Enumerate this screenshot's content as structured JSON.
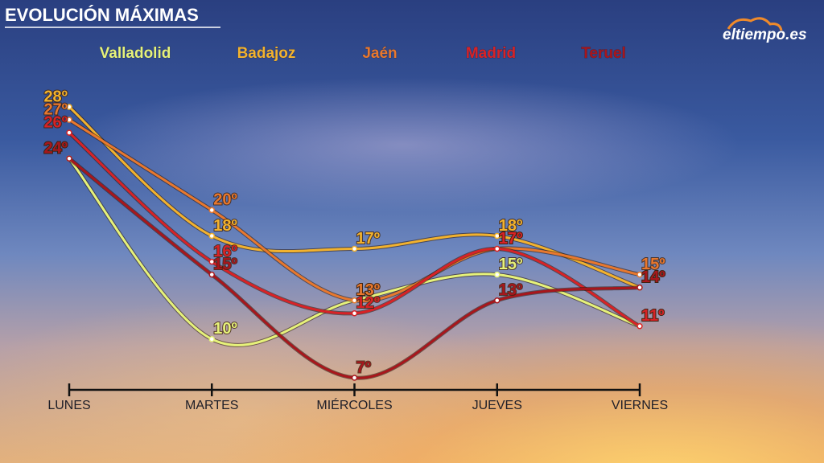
{
  "chart_data": {
    "type": "line",
    "title": "EVOLUCIÓN MÁXIMAS",
    "logo": "eltiempo.es",
    "categories": [
      "LUNES",
      "MARTES",
      "MIÉRCOLES",
      "JUEVES",
      "VIERNES"
    ],
    "series": [
      {
        "name": "Valladolid",
        "color": "#e6f27a",
        "values": [
          24,
          10,
          13,
          15,
          11
        ],
        "value_labels": [
          "24º",
          "10º",
          "13º",
          "15º",
          "11º"
        ]
      },
      {
        "name": "Badajoz",
        "color": "#f2b22e",
        "values": [
          28,
          18,
          17,
          18,
          14
        ],
        "value_labels": [
          "28º",
          "18º",
          "17º",
          "18º",
          "14º"
        ]
      },
      {
        "name": "Jaén",
        "color": "#e8782e",
        "values": [
          27,
          20,
          13,
          17,
          15
        ],
        "value_labels": [
          "27º",
          "20º",
          "13º",
          "17º",
          "15º"
        ]
      },
      {
        "name": "Madrid",
        "color": "#d82226",
        "values": [
          26,
          16,
          12,
          17,
          11
        ],
        "value_labels": [
          "26º",
          "16º",
          "12º",
          "17º",
          "11º"
        ]
      },
      {
        "name": "Teruel",
        "color": "#a8161c",
        "values": [
          24,
          15,
          7,
          13,
          14
        ],
        "value_labels": [
          "24º",
          "15º",
          "7º",
          "13º",
          "14º"
        ]
      }
    ]
  }
}
